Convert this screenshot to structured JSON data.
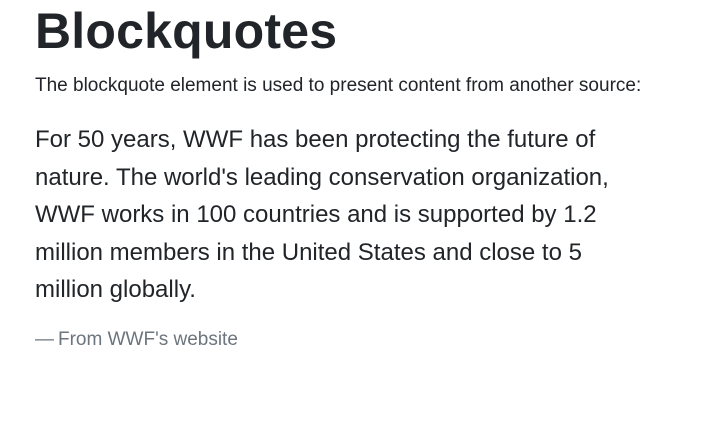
{
  "heading": {
    "title": "Blockquotes"
  },
  "intro": {
    "text": "The blockquote element is used to present content from another source:"
  },
  "blockquote": {
    "text": "For 50 years, WWF has been protecting the future of nature. The world's leading conservation organization, WWF works in 100 countries and is supported by 1.2 million members in the United States and close to 5 million globally.",
    "dash": "—",
    "source": "From WWF's website"
  },
  "colors": {
    "text": "#212529",
    "muted": "#6c757d",
    "background": "#ffffff"
  }
}
